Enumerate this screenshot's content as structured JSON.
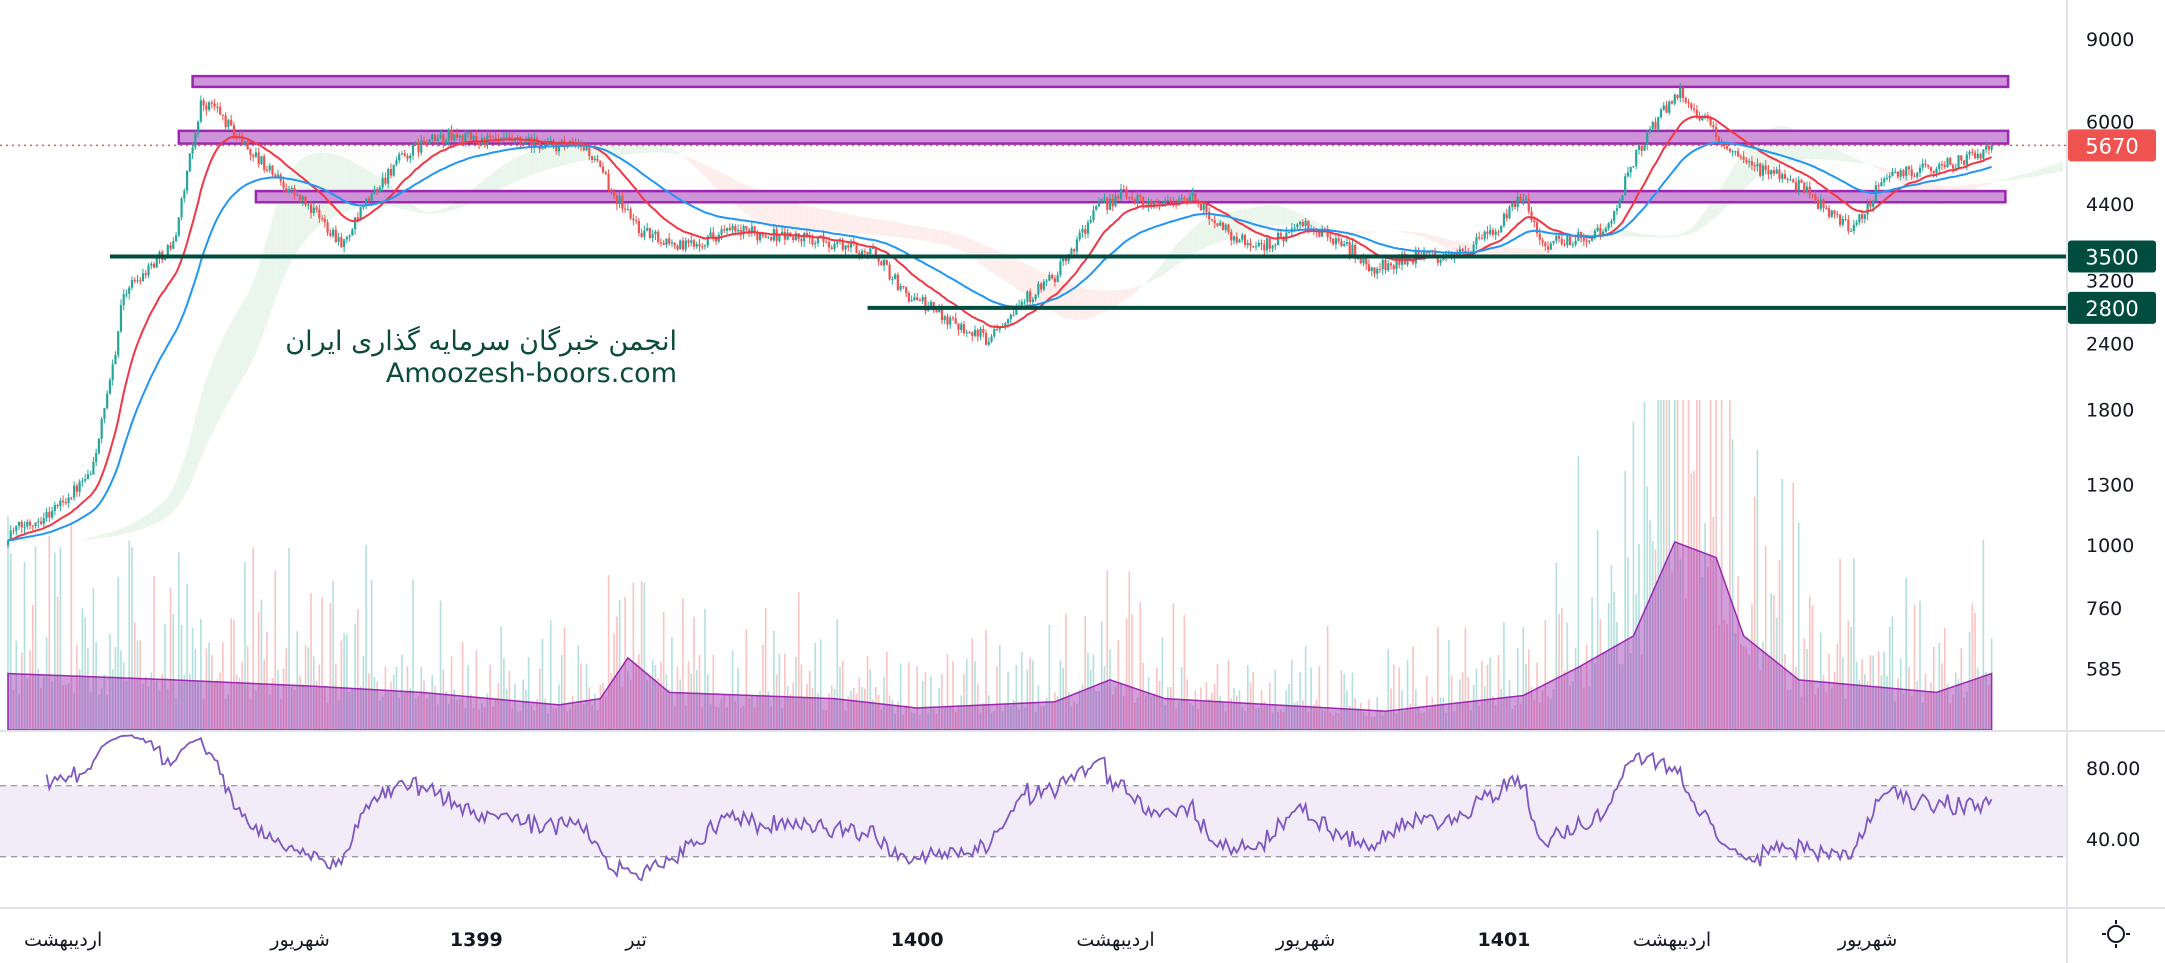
{
  "chart_data": {
    "type": "candlestick",
    "scale": "log",
    "watermark": {
      "line1": "انجمن خبرگان سرمایه گذاری ایران",
      "line2": "Amoozesh-boors.com"
    },
    "price_axis_ticks": [
      9000,
      6000,
      4400,
      3200,
      2400,
      1800,
      1300,
      1000,
      760,
      585
    ],
    "rsi_axis_ticks": [
      "80.00",
      "40.00"
    ],
    "rsi_bands": [
      70,
      30
    ],
    "ylim": [
      480,
      9800
    ],
    "last_price": 5670,
    "last_price_label": "5670",
    "support_lines": [
      {
        "value": 3500,
        "label": "3500",
        "start_bar": 37
      },
      {
        "value": 2800,
        "label": "2800",
        "start_bar": 312
      }
    ],
    "zones": [
      {
        "top": 7660,
        "bottom": 7310,
        "start_bar": 67,
        "end_bar": 726
      },
      {
        "top": 6040,
        "bottom": 5715,
        "start_bar": 62,
        "end_bar": 726
      },
      {
        "top": 4650,
        "bottom": 4430,
        "start_bar": 90,
        "end_bar": 725
      }
    ],
    "close_path": [
      [
        0,
        1050
      ],
      [
        15,
        1150
      ],
      [
        30,
        1350
      ],
      [
        37,
        2000
      ],
      [
        42,
        3000
      ],
      [
        50,
        3300
      ],
      [
        60,
        3700
      ],
      [
        65,
        5000
      ],
      [
        70,
        6800
      ],
      [
        75,
        6700
      ],
      [
        82,
        6000
      ],
      [
        90,
        5400
      ],
      [
        100,
        4800
      ],
      [
        110,
        4300
      ],
      [
        122,
        3700
      ],
      [
        130,
        4400
      ],
      [
        140,
        5200
      ],
      [
        150,
        5700
      ],
      [
        160,
        5900
      ],
      [
        172,
        5800
      ],
      [
        190,
        5700
      ],
      [
        210,
        5600
      ],
      [
        220,
        4600
      ],
      [
        230,
        3900
      ],
      [
        245,
        3650
      ],
      [
        260,
        3900
      ],
      [
        280,
        3850
      ],
      [
        300,
        3700
      ],
      [
        315,
        3550
      ],
      [
        325,
        3000
      ],
      [
        340,
        2700
      ],
      [
        355,
        2450
      ],
      [
        365,
        2800
      ],
      [
        380,
        3200
      ],
      [
        395,
        4300
      ],
      [
        405,
        4600
      ],
      [
        415,
        4400
      ],
      [
        430,
        4500
      ],
      [
        445,
        3800
      ],
      [
        455,
        3650
      ],
      [
        470,
        4000
      ],
      [
        485,
        3700
      ],
      [
        495,
        3300
      ],
      [
        510,
        3500
      ],
      [
        525,
        3500
      ],
      [
        540,
        3900
      ],
      [
        550,
        4600
      ],
      [
        557,
        3700
      ],
      [
        570,
        3800
      ],
      [
        580,
        3900
      ],
      [
        590,
        5300
      ],
      [
        600,
        6500
      ],
      [
        607,
        7200
      ],
      [
        617,
        6200
      ],
      [
        630,
        5200
      ],
      [
        645,
        5000
      ],
      [
        660,
        4300
      ],
      [
        670,
        3900
      ],
      [
        680,
        4900
      ],
      [
        700,
        5200
      ],
      [
        710,
        5300
      ],
      [
        720,
        5670
      ]
    ],
    "volume_ma_path": [
      [
        0,
        0.18
      ],
      [
        60,
        0.16
      ],
      [
        110,
        0.14
      ],
      [
        150,
        0.12
      ],
      [
        200,
        0.08
      ],
      [
        215,
        0.1
      ],
      [
        225,
        0.23
      ],
      [
        240,
        0.12
      ],
      [
        300,
        0.1
      ],
      [
        330,
        0.07
      ],
      [
        380,
        0.09
      ],
      [
        400,
        0.16
      ],
      [
        420,
        0.1
      ],
      [
        500,
        0.06
      ],
      [
        550,
        0.11
      ],
      [
        570,
        0.2
      ],
      [
        590,
        0.3
      ],
      [
        605,
        0.6
      ],
      [
        620,
        0.55
      ],
      [
        630,
        0.3
      ],
      [
        650,
        0.16
      ],
      [
        700,
        0.12
      ],
      [
        720,
        0.18
      ]
    ],
    "time_labels": [
      {
        "bar": 20,
        "label": "اردیبهشت"
      },
      {
        "bar": 106,
        "label": "شهریور"
      },
      {
        "bar": 170,
        "label": "1399",
        "bold": true
      },
      {
        "bar": 228,
        "label": "تیر"
      },
      {
        "bar": 330,
        "label": "1400",
        "bold": true
      },
      {
        "bar": 402,
        "label": "اردیبهشت"
      },
      {
        "bar": 471,
        "label": "شهریور"
      },
      {
        "bar": 543,
        "label": "1401",
        "bold": true
      },
      {
        "bar": 604,
        "label": "اردیبهشت"
      },
      {
        "bar": 675,
        "label": "شهریور"
      }
    ],
    "colors": {
      "up": "#26a69a",
      "down": "#ef5350",
      "ema_fast": "#f23645",
      "ema_slow": "#2196f3",
      "zone": "#9c27b0",
      "support": "#004d40",
      "rsi": "#7e57c2"
    }
  }
}
